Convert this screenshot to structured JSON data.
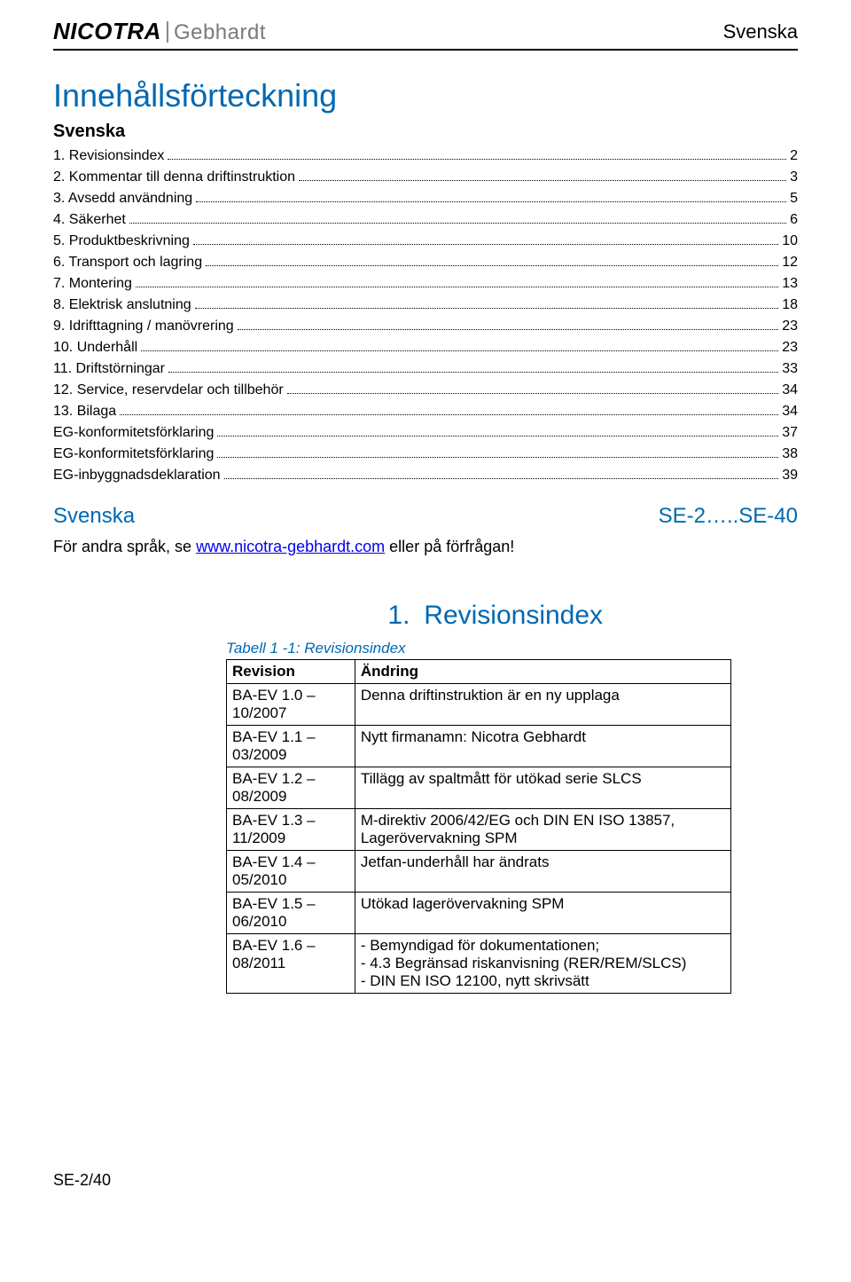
{
  "header": {
    "logo_left": "NICOTRA",
    "logo_right": "Gebhardt",
    "language": "Svenska"
  },
  "toc": {
    "title": "Innehållsförteckning",
    "subtitle": "Svenska",
    "items": [
      {
        "label": "1.   Revisionsindex",
        "page": "2"
      },
      {
        "label": "2.   Kommentar till denna driftinstruktion",
        "page": "3"
      },
      {
        "label": "3.   Avsedd användning",
        "page": "5"
      },
      {
        "label": "4.   Säkerhet",
        "page": "6"
      },
      {
        "label": "5.   Produktbeskrivning",
        "page": "10"
      },
      {
        "label": "6.   Transport och lagring",
        "page": "12"
      },
      {
        "label": "7.   Montering",
        "page": "13"
      },
      {
        "label": "8.   Elektrisk anslutning",
        "page": "18"
      },
      {
        "label": "9.   Idrifttagning / manövrering",
        "page": "23"
      },
      {
        "label": "10.  Underhåll",
        "page": "23"
      },
      {
        "label": "11.  Driftstörningar",
        "page": "33"
      },
      {
        "label": "12.  Service, reservdelar och tillbehör",
        "page": "34"
      },
      {
        "label": "13.  Bilaga",
        "page": "34"
      },
      {
        "label": "EG-konformitetsförklaring",
        "page": "37"
      },
      {
        "label": "EG-konformitetsförklaring",
        "page": "38"
      },
      {
        "label": "EG-inbyggnadsdeklaration",
        "page": "39"
      }
    ]
  },
  "lang_range": {
    "left": "Svenska",
    "right": "SE-2…..SE-40"
  },
  "extra_lang": {
    "prefix": "För andra språk, se ",
    "link": "www.nicotra-gebhardt.com",
    "suffix": " eller på förfrågan!"
  },
  "section1": {
    "num": "1.",
    "title": "Revisionsindex",
    "caption": "Tabell 1 -1: Revisionsindex",
    "columns": [
      "Revision",
      "Ändring"
    ],
    "rows": [
      [
        "BA-EV 1.0 – 10/2007",
        "Denna driftinstruktion är en ny upplaga"
      ],
      [
        "BA-EV 1.1 – 03/2009",
        "Nytt firmanamn: Nicotra Gebhardt"
      ],
      [
        "BA-EV 1.2 – 08/2009",
        "Tillägg av spaltmått för utökad serie SLCS"
      ],
      [
        "BA-EV 1.3 – 11/2009",
        "M-direktiv 2006/42/EG och DIN EN ISO 13857, Lagerövervakning SPM"
      ],
      [
        "BA-EV 1.4 – 05/2010",
        "Jetfan-underhåll har ändrats"
      ],
      [
        "BA-EV 1.5 – 06/2010",
        "Utökad lagerövervakning SPM"
      ],
      [
        "BA-EV 1.6 – 08/2011",
        "- Bemyndigad för dokumentationen;\n- 4.3 Begränsad riskanvisning (RER/REM/SLCS)\n- DIN EN ISO 12100, nytt skrivsätt"
      ]
    ]
  },
  "footer": "SE-2/40",
  "colors": {
    "blue": "#0068b2",
    "link": "#0000ee",
    "grey": "#7a7a7a",
    "black": "#000000",
    "bg": "#ffffff"
  }
}
